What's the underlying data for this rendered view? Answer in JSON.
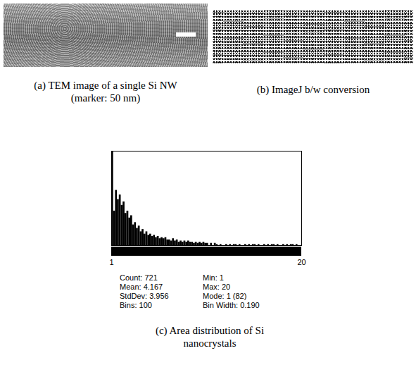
{
  "figure": {
    "a_caption": "(a) TEM image of a single Si NW (marker: 50 nm)",
    "b_caption": "(b) ImageJ b/w conversion"
  },
  "chart_data": {
    "type": "histogram",
    "caption": "(c) Area distribution of Si nanocrystals",
    "bins": [
      1,
      1.19,
      1.38,
      1.57,
      1.76,
      1.95,
      2.14,
      2.33,
      2.52,
      2.71,
      2.9,
      3.09,
      3.28,
      3.47,
      3.66,
      3.85,
      4.04,
      4.23,
      4.42,
      4.61,
      4.8,
      4.99,
      5.18,
      5.37,
      5.56,
      5.75,
      5.94,
      6.13,
      6.32,
      6.51,
      6.7,
      6.89,
      7.08,
      7.27,
      7.46,
      7.65,
      7.84,
      8.03,
      8.22,
      8.41,
      8.6,
      8.79,
      8.98,
      9.17,
      9.36,
      9.55,
      9.74,
      9.93,
      10.12,
      10.31,
      10.5,
      10.69,
      10.88,
      11.07,
      11.26,
      11.45,
      11.64,
      11.83,
      12.02,
      12.21,
      12.4,
      12.59,
      12.78,
      12.97,
      13.16,
      13.35,
      13.54,
      13.73,
      13.92,
      14.11,
      14.3,
      14.49,
      14.68,
      14.87,
      15.06,
      15.25,
      15.44,
      15.63,
      15.82,
      16.01,
      16.2,
      16.39,
      16.58,
      16.77,
      16.96,
      17.15,
      17.34,
      17.53,
      17.72,
      17.91,
      18.1,
      18.29,
      18.48,
      18.67,
      18.86,
      19.05,
      19.24,
      19.43,
      19.62,
      19.81,
      20
    ],
    "counts": [
      82,
      30,
      48,
      40,
      44,
      35,
      38,
      28,
      30,
      24,
      26,
      18,
      20,
      15,
      17,
      12,
      14,
      10,
      12,
      9,
      10,
      8,
      9,
      7,
      8,
      6,
      7,
      6,
      7,
      5,
      5,
      4,
      6,
      4,
      5,
      3,
      4,
      3,
      4,
      3,
      4,
      3,
      3,
      2,
      3,
      2,
      3,
      2,
      3,
      2,
      2,
      0,
      2,
      0,
      2,
      1,
      0,
      1,
      0,
      0,
      1,
      0,
      1,
      0,
      1,
      1,
      0,
      1,
      0,
      0,
      1,
      0,
      1,
      0,
      1,
      1,
      0,
      1,
      0,
      0,
      1,
      0,
      1,
      0,
      1,
      1,
      0,
      1,
      0,
      0,
      1,
      0,
      1,
      0,
      1,
      1,
      0,
      1,
      0,
      0
    ],
    "color": "#000000",
    "xlim": [
      1,
      20
    ],
    "xticks": [
      1,
      20
    ],
    "ylim": [
      0,
      82
    ],
    "tick_labels": "x",
    "stats": [
      "Count: 721",
      "Min: 1",
      "Mean: 4.167",
      "Max: 20",
      "StdDev: 3.956",
      "Mode: 1 (82)",
      "Bins: 100",
      "Bin Width: 0.190"
    ]
  }
}
